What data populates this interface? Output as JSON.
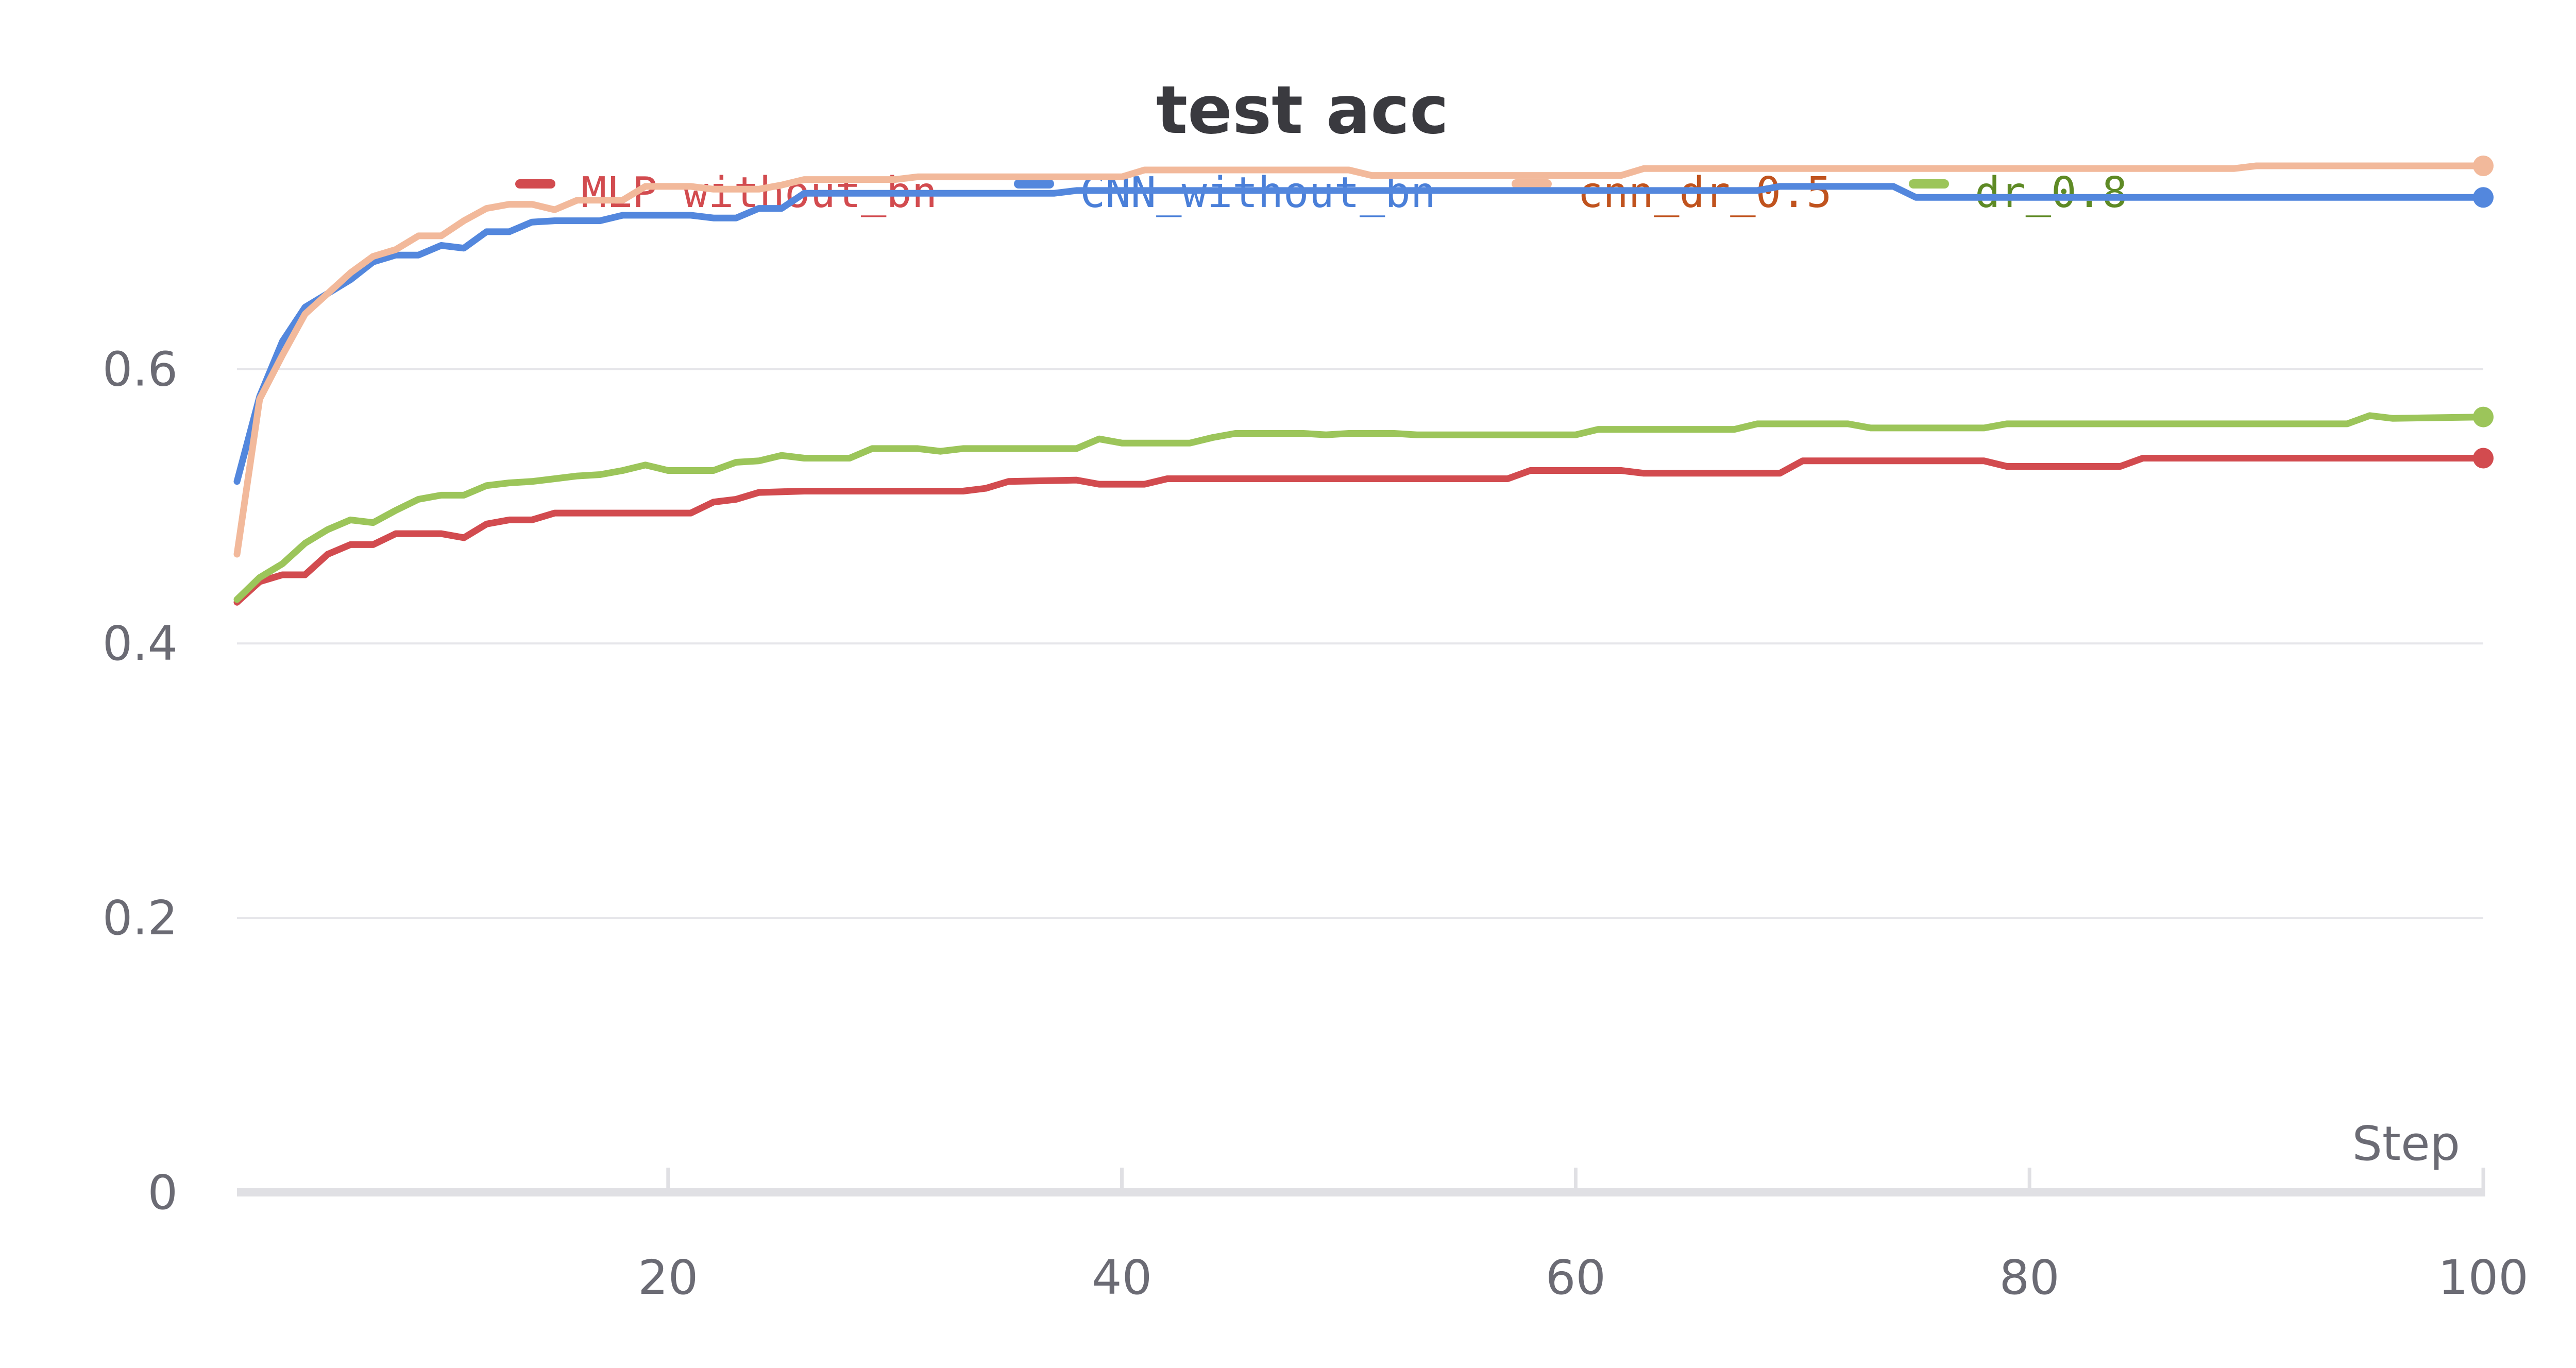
{
  "chart_data": {
    "type": "line",
    "title": "test acc",
    "xlabel": "Step",
    "ylabel": "",
    "xlim": [
      1,
      100
    ],
    "ylim": [
      0,
      0.76
    ],
    "x_ticks": [
      20,
      40,
      60,
      80,
      100
    ],
    "y_ticks": [
      0,
      0.2,
      0.4,
      0.6
    ],
    "y_tick_labels": [
      "0",
      "0.2",
      "0.4",
      "0.6"
    ],
    "grid": true,
    "legend_placement": "top-center",
    "series": [
      {
        "name": "MLP_without_bn",
        "color": "#d24b4f",
        "label_color": "#d24b4f",
        "points": [
          [
            1,
            0.43
          ],
          [
            2,
            0.445
          ],
          [
            3,
            0.45
          ],
          [
            4,
            0.45
          ],
          [
            5,
            0.465
          ],
          [
            6,
            0.472
          ],
          [
            7,
            0.472
          ],
          [
            8,
            0.48
          ],
          [
            9,
            0.48
          ],
          [
            10,
            0.48
          ],
          [
            11,
            0.477
          ],
          [
            12,
            0.487
          ],
          [
            13,
            0.49
          ],
          [
            14,
            0.49
          ],
          [
            15,
            0.495
          ],
          [
            17,
            0.495
          ],
          [
            20,
            0.495
          ],
          [
            21,
            0.495
          ],
          [
            22,
            0.503
          ],
          [
            23,
            0.505
          ],
          [
            24,
            0.51
          ],
          [
            26,
            0.511
          ],
          [
            30,
            0.511
          ],
          [
            33,
            0.511
          ],
          [
            34,
            0.513
          ],
          [
            35,
            0.518
          ],
          [
            38,
            0.519
          ],
          [
            39,
            0.516
          ],
          [
            41,
            0.516
          ],
          [
            42,
            0.52
          ],
          [
            50,
            0.52
          ],
          [
            57,
            0.52
          ],
          [
            58,
            0.526
          ],
          [
            62,
            0.526
          ],
          [
            63,
            0.524
          ],
          [
            69,
            0.524
          ],
          [
            70,
            0.533
          ],
          [
            78,
            0.533
          ],
          [
            79,
            0.529
          ],
          [
            84,
            0.529
          ],
          [
            85,
            0.535
          ],
          [
            90,
            0.535
          ],
          [
            100,
            0.535
          ]
        ]
      },
      {
        "name": "CNN_without_bn",
        "color": "#5387dd",
        "label_color": "#4a7fd8",
        "points": [
          [
            1,
            0.518
          ],
          [
            2,
            0.58
          ],
          [
            3,
            0.62
          ],
          [
            4,
            0.645
          ],
          [
            5,
            0.655
          ],
          [
            6,
            0.665
          ],
          [
            7,
            0.678
          ],
          [
            8,
            0.683
          ],
          [
            9,
            0.683
          ],
          [
            10,
            0.69
          ],
          [
            11,
            0.688
          ],
          [
            12,
            0.7
          ],
          [
            13,
            0.7
          ],
          [
            14,
            0.707
          ],
          [
            15,
            0.708
          ],
          [
            17,
            0.708
          ],
          [
            18,
            0.712
          ],
          [
            21,
            0.712
          ],
          [
            22,
            0.71
          ],
          [
            23,
            0.71
          ],
          [
            24,
            0.717
          ],
          [
            25,
            0.717
          ],
          [
            26,
            0.728
          ],
          [
            30,
            0.728
          ],
          [
            37,
            0.728
          ],
          [
            38,
            0.73
          ],
          [
            45,
            0.73
          ],
          [
            55,
            0.73
          ],
          [
            68,
            0.73
          ],
          [
            69,
            0.733
          ],
          [
            74,
            0.733
          ],
          [
            75,
            0.725
          ],
          [
            85,
            0.725
          ],
          [
            100,
            0.725
          ]
        ]
      },
      {
        "name": "cnn_dr_0.5",
        "color": "#f2b99b",
        "label_color": "#c0531e",
        "points": [
          [
            1,
            0.465
          ],
          [
            2,
            0.578
          ],
          [
            3,
            0.61
          ],
          [
            4,
            0.64
          ],
          [
            5,
            0.655
          ],
          [
            6,
            0.67
          ],
          [
            7,
            0.682
          ],
          [
            8,
            0.687
          ],
          [
            9,
            0.697
          ],
          [
            10,
            0.697
          ],
          [
            11,
            0.708
          ],
          [
            12,
            0.717
          ],
          [
            13,
            0.72
          ],
          [
            14,
            0.72
          ],
          [
            15,
            0.716
          ],
          [
            16,
            0.723
          ],
          [
            18,
            0.723
          ],
          [
            19,
            0.733
          ],
          [
            21,
            0.733
          ],
          [
            22,
            0.731
          ],
          [
            24,
            0.731
          ],
          [
            25,
            0.734
          ],
          [
            26,
            0.738
          ],
          [
            30,
            0.738
          ],
          [
            31,
            0.74
          ],
          [
            40,
            0.74
          ],
          [
            41,
            0.745
          ],
          [
            50,
            0.745
          ],
          [
            51,
            0.741
          ],
          [
            62,
            0.741
          ],
          [
            63,
            0.746
          ],
          [
            75,
            0.746
          ],
          [
            89,
            0.746
          ],
          [
            90,
            0.748
          ],
          [
            100,
            0.748
          ]
        ]
      },
      {
        "name": "dr_0.8",
        "color": "#9cc55a",
        "label_color": "#5e8a25",
        "points": [
          [
            1,
            0.432
          ],
          [
            2,
            0.448
          ],
          [
            3,
            0.458
          ],
          [
            4,
            0.473
          ],
          [
            5,
            0.483
          ],
          [
            6,
            0.49
          ],
          [
            7,
            0.488
          ],
          [
            8,
            0.497
          ],
          [
            9,
            0.505
          ],
          [
            10,
            0.508
          ],
          [
            11,
            0.508
          ],
          [
            12,
            0.515
          ],
          [
            13,
            0.517
          ],
          [
            14,
            0.518
          ],
          [
            15,
            0.52
          ],
          [
            16,
            0.522
          ],
          [
            17,
            0.523
          ],
          [
            18,
            0.526
          ],
          [
            19,
            0.53
          ],
          [
            20,
            0.526
          ],
          [
            22,
            0.526
          ],
          [
            23,
            0.532
          ],
          [
            24,
            0.533
          ],
          [
            25,
            0.537
          ],
          [
            26,
            0.535
          ],
          [
            28,
            0.535
          ],
          [
            29,
            0.542
          ],
          [
            31,
            0.542
          ],
          [
            32,
            0.54
          ],
          [
            33,
            0.542
          ],
          [
            38,
            0.542
          ],
          [
            39,
            0.549
          ],
          [
            40,
            0.546
          ],
          [
            43,
            0.546
          ],
          [
            44,
            0.55
          ],
          [
            45,
            0.553
          ],
          [
            48,
            0.553
          ],
          [
            49,
            0.552
          ],
          [
            50,
            0.553
          ],
          [
            52,
            0.553
          ],
          [
            53,
            0.552
          ],
          [
            60,
            0.552
          ],
          [
            61,
            0.556
          ],
          [
            67,
            0.556
          ],
          [
            68,
            0.56
          ],
          [
            72,
            0.56
          ],
          [
            73,
            0.557
          ],
          [
            78,
            0.557
          ],
          [
            79,
            0.56
          ],
          [
            85,
            0.56
          ],
          [
            94,
            0.56
          ],
          [
            95,
            0.566
          ],
          [
            96,
            0.564
          ],
          [
            100,
            0.565
          ]
        ]
      }
    ]
  }
}
